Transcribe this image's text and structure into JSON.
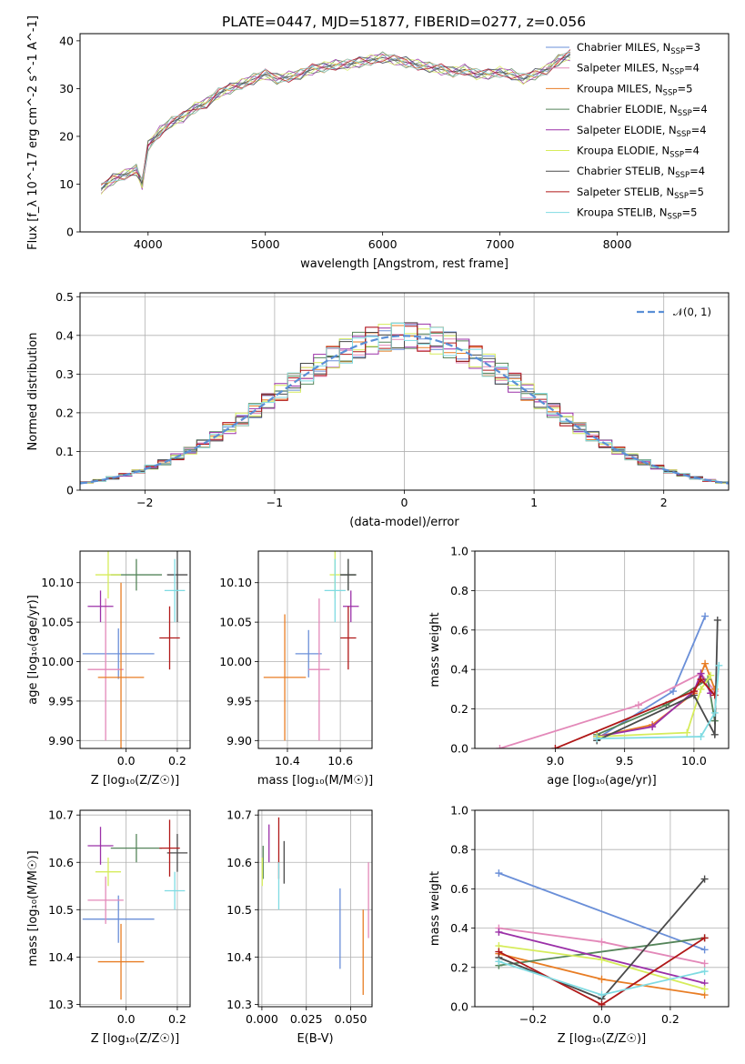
{
  "title": "PLATE=0447, MJD=51877, FIBERID=0277, z=0.056",
  "models": [
    {
      "name": "Chabrier MILES",
      "nssp": "3",
      "color": "#6a8fd8"
    },
    {
      "name": "Salpeter MILES",
      "nssp": "4",
      "color": "#e389b9"
    },
    {
      "name": "Kroupa MILES",
      "nssp": "5",
      "color": "#e87d24"
    },
    {
      "name": "Chabrier ELODIE",
      "nssp": "4",
      "color": "#55855a"
    },
    {
      "name": "Salpeter ELODIE",
      "nssp": "4",
      "color": "#9b30a8"
    },
    {
      "name": "Kroupa ELODIE",
      "nssp": "4",
      "color": "#d6ec5b"
    },
    {
      "name": "Chabrier STELIB",
      "nssp": "4",
      "color": "#4a4a4a"
    },
    {
      "name": "Salpeter STELIB",
      "nssp": "5",
      "color": "#b01818"
    },
    {
      "name": "Kroupa STELIB",
      "nssp": "5",
      "color": "#7fdbe2"
    }
  ],
  "chart_data": [
    {
      "id": "spectrum",
      "type": "line",
      "xlabel": "wavelength [Angstrom, rest frame]",
      "ylabel": "Flux [f_λ 10^-17 erg cm^-2 s^-1 A^-1]",
      "xlim": [
        3420,
        8950
      ],
      "ylim": [
        0,
        41.5
      ],
      "xticks": [
        4000,
        5000,
        6000,
        7000,
        8000
      ],
      "yticks": [
        0,
        10,
        20,
        30,
        40
      ],
      "grid": false,
      "legend_position": "right",
      "x": [
        3600,
        3700,
        3800,
        3900,
        3950,
        4000,
        4100,
        4200,
        4300,
        4400,
        4500,
        4600,
        4700,
        4800,
        4900,
        5000,
        5100,
        5200,
        5300,
        5400,
        5500,
        5600,
        5700,
        5800,
        5900,
        6000,
        6100,
        6200,
        6300,
        6400,
        6500,
        6600,
        6700,
        6800,
        6900,
        7000,
        7100,
        7200,
        7300,
        7400,
        7500,
        7600
      ],
      "y": [
        9,
        11,
        12,
        13,
        10,
        18,
        21,
        23,
        24,
        26,
        27,
        29,
        30,
        31,
        32,
        33,
        32,
        32.5,
        33,
        34,
        34.5,
        35,
        35,
        35.5,
        36,
        36.5,
        36,
        35.5,
        35,
        34.5,
        34,
        33.5,
        34,
        33,
        33,
        33.5,
        33,
        32,
        33,
        34,
        36,
        37
      ]
    },
    {
      "id": "residuals",
      "type": "line",
      "xlabel": "(data-model)/error",
      "ylabel": "Normed distribution",
      "xlim": [
        -2.5,
        2.5
      ],
      "ylim": [
        0,
        0.51
      ],
      "xticks": [
        -2,
        -1,
        0,
        1,
        2
      ],
      "yticks": [
        0.0,
        0.1,
        0.2,
        0.3,
        0.4,
        0.5
      ],
      "grid": true,
      "legend_position": "top-right",
      "legend_label": "𝒩(0, 1)",
      "series": [
        {
          "name": "𝒩(0, 1)",
          "type": "normal",
          "mean": 0,
          "sigma": 1
        }
      ]
    },
    {
      "id": "age_vs_Z",
      "type": "scatter",
      "xlabel": "Z [log₁₀(Z/Z☉)]",
      "ylabel": "age  [log₁₀(age/yr)]",
      "xlim": [
        -0.18,
        0.25
      ],
      "ylim": [
        9.89,
        10.14
      ],
      "xticks": [
        0.0,
        0.2
      ],
      "xticklabels": [
        "0.0",
        "0.2"
      ],
      "yticks": [
        9.9,
        9.95,
        10.0,
        10.05,
        10.1
      ],
      "yticklabels": [
        "9.90",
        "9.95",
        "10.00",
        "10.05",
        "10.10"
      ],
      "grid": true,
      "points": [
        {
          "x": -0.03,
          "xerr": 0.14,
          "y": 10.01,
          "yerr": 0.032,
          "color": "#6a8fd8"
        },
        {
          "x": -0.08,
          "xerr": 0.07,
          "y": 9.99,
          "yerr": 0.09,
          "color": "#e389b9"
        },
        {
          "x": -0.02,
          "xerr": 0.09,
          "y": 9.98,
          "yerr": 0.12,
          "color": "#e87d24"
        },
        {
          "x": 0.04,
          "xerr": 0.1,
          "y": 10.11,
          "yerr": 0.02,
          "color": "#55855a"
        },
        {
          "x": -0.1,
          "xerr": 0.05,
          "y": 10.07,
          "yerr": 0.02,
          "color": "#9b30a8"
        },
        {
          "x": -0.07,
          "xerr": 0.05,
          "y": 10.11,
          "yerr": 0.03,
          "color": "#d6ec5b"
        },
        {
          "x": 0.2,
          "xerr": 0.04,
          "y": 10.11,
          "yerr": 0.06,
          "color": "#4a4a4a"
        },
        {
          "x": 0.17,
          "xerr": 0.04,
          "y": 10.03,
          "yerr": 0.04,
          "color": "#b01818"
        },
        {
          "x": 0.19,
          "xerr": 0.04,
          "y": 10.09,
          "yerr": 0.04,
          "color": "#7fdbe2"
        }
      ]
    },
    {
      "id": "age_vs_mass",
      "type": "scatter",
      "xlabel": "mass [log₁₀(M/M☉)]",
      "ylabel": "",
      "xlim": [
        10.29,
        10.72
      ],
      "ylim": [
        9.89,
        10.14
      ],
      "xticks": [
        10.4,
        10.6
      ],
      "xticklabels": [
        "10.4",
        "10.6"
      ],
      "yticks": [
        9.9,
        9.95,
        10.0,
        10.05,
        10.1
      ],
      "yticklabels": [
        "9.90",
        "9.95",
        "10.00",
        "10.05",
        "10.10"
      ],
      "grid": true,
      "points": [
        {
          "x": 10.48,
          "xerr": 0.05,
          "y": 10.01,
          "yerr": 0.03,
          "color": "#6a8fd8"
        },
        {
          "x": 10.52,
          "xerr": 0.04,
          "y": 9.99,
          "yerr": 0.09,
          "color": "#e389b9"
        },
        {
          "x": 10.39,
          "xerr": 0.08,
          "y": 9.98,
          "yerr": 0.08,
          "color": "#e87d24"
        },
        {
          "x": 10.63,
          "xerr": 0.03,
          "y": 10.11,
          "yerr": 0.02,
          "color": "#55855a"
        },
        {
          "x": 10.64,
          "xerr": 0.03,
          "y": 10.07,
          "yerr": 0.02,
          "color": "#9b30a8"
        },
        {
          "x": 10.58,
          "xerr": 0.02,
          "y": 10.11,
          "yerr": 0.03,
          "color": "#d6ec5b"
        },
        {
          "x": 10.63,
          "xerr": 0.03,
          "y": 10.11,
          "yerr": 0.02,
          "color": "#4a4a4a"
        },
        {
          "x": 10.63,
          "xerr": 0.03,
          "y": 10.03,
          "yerr": 0.04,
          "color": "#b01818"
        },
        {
          "x": 10.58,
          "xerr": 0.04,
          "y": 10.09,
          "yerr": 0.04,
          "color": "#7fdbe2"
        }
      ]
    },
    {
      "id": "weight_vs_age",
      "type": "line",
      "xlabel": "age  [log₁₀(age/yr)]",
      "ylabel": "mass weight",
      "xlim": [
        8.42,
        10.25
      ],
      "ylim": [
        0,
        1.0
      ],
      "xticks": [
        9.0,
        9.5,
        10.0
      ],
      "xticklabels": [
        "9.0",
        "9.5",
        "10.0"
      ],
      "yticks": [
        0.0,
        0.2,
        0.4,
        0.6,
        0.8,
        1.0
      ],
      "yticklabels": [
        "0.0",
        "0.2",
        "0.4",
        "0.6",
        "0.8",
        "1.0"
      ],
      "grid": true,
      "series": [
        {
          "x": [
            9.3,
            9.85,
            10.08
          ],
          "values": [
            0.05,
            0.29,
            0.67
          ],
          "color": "#6a8fd8"
        },
        {
          "x": [
            8.6,
            9.6,
            10.05,
            10.15
          ],
          "values": [
            0.0,
            0.22,
            0.38,
            0.29
          ],
          "color": "#e389b9"
        },
        {
          "x": [
            9.3,
            9.7,
            10.0,
            10.08,
            10.15
          ],
          "values": [
            0.06,
            0.12,
            0.28,
            0.43,
            0.3
          ],
          "color": "#e87d24"
        },
        {
          "x": [
            9.3,
            9.8,
            10.1,
            10.15
          ],
          "values": [
            0.07,
            0.22,
            0.35,
            0.14
          ],
          "color": "#55855a"
        },
        {
          "x": [
            9.3,
            9.7,
            10.0,
            10.05,
            10.12
          ],
          "values": [
            0.06,
            0.11,
            0.29,
            0.38,
            0.28
          ],
          "color": "#9b30a8"
        },
        {
          "x": [
            9.3,
            9.95,
            10.05,
            10.12
          ],
          "values": [
            0.06,
            0.08,
            0.3,
            0.37
          ],
          "color": "#d6ec5b"
        },
        {
          "x": [
            9.3,
            10.0,
            10.15,
            10.17
          ],
          "values": [
            0.04,
            0.27,
            0.07,
            0.65
          ],
          "color": "#4a4a4a"
        },
        {
          "x": [
            9.0,
            10.0,
            10.05,
            10.15
          ],
          "values": [
            0.0,
            0.29,
            0.35,
            0.27
          ],
          "color": "#b01818"
        },
        {
          "x": [
            9.3,
            10.05,
            10.15,
            10.18
          ],
          "values": [
            0.05,
            0.06,
            0.18,
            0.42
          ],
          "color": "#7fdbe2"
        }
      ]
    },
    {
      "id": "mass_vs_Z",
      "type": "scatter",
      "xlabel": "Z [log₁₀(Z/Z☉)]",
      "ylabel": "mass [log₁₀(M/M☉)]",
      "xlim": [
        -0.18,
        0.25
      ],
      "ylim": [
        10.295,
        10.71
      ],
      "xticks": [
        0.0,
        0.2
      ],
      "xticklabels": [
        "0.0",
        "0.2"
      ],
      "yticks": [
        10.3,
        10.4,
        10.5,
        10.6,
        10.7
      ],
      "yticklabels": [
        "10.3",
        "10.4",
        "10.5",
        "10.6",
        "10.7"
      ],
      "grid": true,
      "points": [
        {
          "x": -0.03,
          "xerr": 0.14,
          "y": 10.48,
          "yerr": 0.05,
          "color": "#6a8fd8"
        },
        {
          "x": -0.08,
          "xerr": 0.07,
          "y": 10.52,
          "yerr": 0.05,
          "color": "#e389b9"
        },
        {
          "x": -0.02,
          "xerr": 0.09,
          "y": 10.39,
          "yerr": 0.08,
          "color": "#e87d24"
        },
        {
          "x": 0.04,
          "xerr": 0.1,
          "y": 10.63,
          "yerr": 0.03,
          "color": "#55855a"
        },
        {
          "x": -0.1,
          "xerr": 0.05,
          "y": 10.635,
          "yerr": 0.04,
          "color": "#9b30a8"
        },
        {
          "x": -0.07,
          "xerr": 0.05,
          "y": 10.58,
          "yerr": 0.03,
          "color": "#d6ec5b"
        },
        {
          "x": 0.2,
          "xerr": 0.04,
          "y": 10.62,
          "yerr": 0.04,
          "color": "#4a4a4a"
        },
        {
          "x": 0.17,
          "xerr": 0.04,
          "y": 10.63,
          "yerr": 0.06,
          "color": "#b01818"
        },
        {
          "x": 0.19,
          "xerr": 0.04,
          "y": 10.54,
          "yerr": 0.04,
          "color": "#7fdbe2"
        }
      ]
    },
    {
      "id": "mass_vs_ebv",
      "type": "scatter",
      "xlabel": "E(B-V)",
      "ylabel": "",
      "xlim": [
        -0.002,
        0.062
      ],
      "ylim": [
        10.295,
        10.71
      ],
      "xticks": [
        0.0,
        0.025,
        0.05
      ],
      "xticklabels": [
        "0.000",
        "0.025",
        "0.050"
      ],
      "yticks": [
        10.3,
        10.4,
        10.5,
        10.6,
        10.7
      ],
      "yticklabels": [
        "10.3",
        "10.4",
        "10.5",
        "10.6",
        "10.7"
      ],
      "grid": true,
      "points": [
        {
          "x": 0.044,
          "xerr": 0.0,
          "y": 10.46,
          "yerr": 0.085,
          "color": "#6a8fd8"
        },
        {
          "x": 0.06,
          "xerr": 0.0,
          "y": 10.52,
          "yerr": 0.08,
          "color": "#e389b9"
        },
        {
          "x": 0.057,
          "xerr": 0.0,
          "y": 10.41,
          "yerr": 0.09,
          "color": "#e87d24"
        },
        {
          "x": 0.0007,
          "xerr": 0.0,
          "y": 10.6,
          "yerr": 0.035,
          "color": "#55855a"
        },
        {
          "x": 0.004,
          "xerr": 0.0,
          "y": 10.64,
          "yerr": 0.04,
          "color": "#9b30a8"
        },
        {
          "x": 0.0002,
          "xerr": 0.0,
          "y": 10.58,
          "yerr": 0.03,
          "color": "#d6ec5b"
        },
        {
          "x": 0.0125,
          "xerr": 0.0,
          "y": 10.6,
          "yerr": 0.045,
          "color": "#4a4a4a"
        },
        {
          "x": 0.0095,
          "xerr": 0.0,
          "y": 10.63,
          "yerr": 0.065,
          "color": "#b01818"
        },
        {
          "x": 0.0095,
          "xerr": 0.0,
          "y": 10.55,
          "yerr": 0.05,
          "color": "#7fdbe2"
        }
      ]
    },
    {
      "id": "weight_vs_Z",
      "type": "line",
      "xlabel": "Z [log₁₀(Z/Z☉)]",
      "ylabel": "mass weight",
      "xlim": [
        -0.37,
        0.37
      ],
      "ylim": [
        0,
        1.0
      ],
      "xticks": [
        -0.2,
        0.0,
        0.2
      ],
      "xticklabels": [
        "−0.2",
        "0.0",
        "0.2"
      ],
      "yticks": [
        0.0,
        0.2,
        0.4,
        0.6,
        0.8,
        1.0
      ],
      "yticklabels": [
        "0.0",
        "0.2",
        "0.4",
        "0.6",
        "0.8",
        "1.0"
      ],
      "grid": true,
      "series": [
        {
          "x": [
            -0.3,
            0.3
          ],
          "values": [
            0.68,
            0.29
          ],
          "color": "#6a8fd8"
        },
        {
          "x": [
            -0.3,
            0.0,
            0.3
          ],
          "values": [
            0.4,
            0.33,
            0.22
          ],
          "color": "#e389b9"
        },
        {
          "x": [
            -0.3,
            0.0,
            0.3
          ],
          "values": [
            0.27,
            0.14,
            0.06
          ],
          "color": "#e87d24"
        },
        {
          "x": [
            -0.3,
            0.3
          ],
          "values": [
            0.21,
            0.35
          ],
          "color": "#55855a"
        },
        {
          "x": [
            -0.3,
            0.3
          ],
          "values": [
            0.38,
            0.12
          ],
          "color": "#9b30a8"
        },
        {
          "x": [
            -0.3,
            0.0,
            0.3
          ],
          "values": [
            0.31,
            0.24,
            0.09
          ],
          "color": "#d6ec5b"
        },
        {
          "x": [
            -0.3,
            0.0,
            0.3
          ],
          "values": [
            0.25,
            0.04,
            0.65
          ],
          "color": "#4a4a4a"
        },
        {
          "x": [
            -0.3,
            0.0,
            0.3
          ],
          "values": [
            0.28,
            0.01,
            0.35
          ],
          "color": "#b01818"
        },
        {
          "x": [
            -0.3,
            0.0,
            0.3
          ],
          "values": [
            0.23,
            0.06,
            0.18
          ],
          "color": "#7fdbe2"
        }
      ]
    }
  ]
}
